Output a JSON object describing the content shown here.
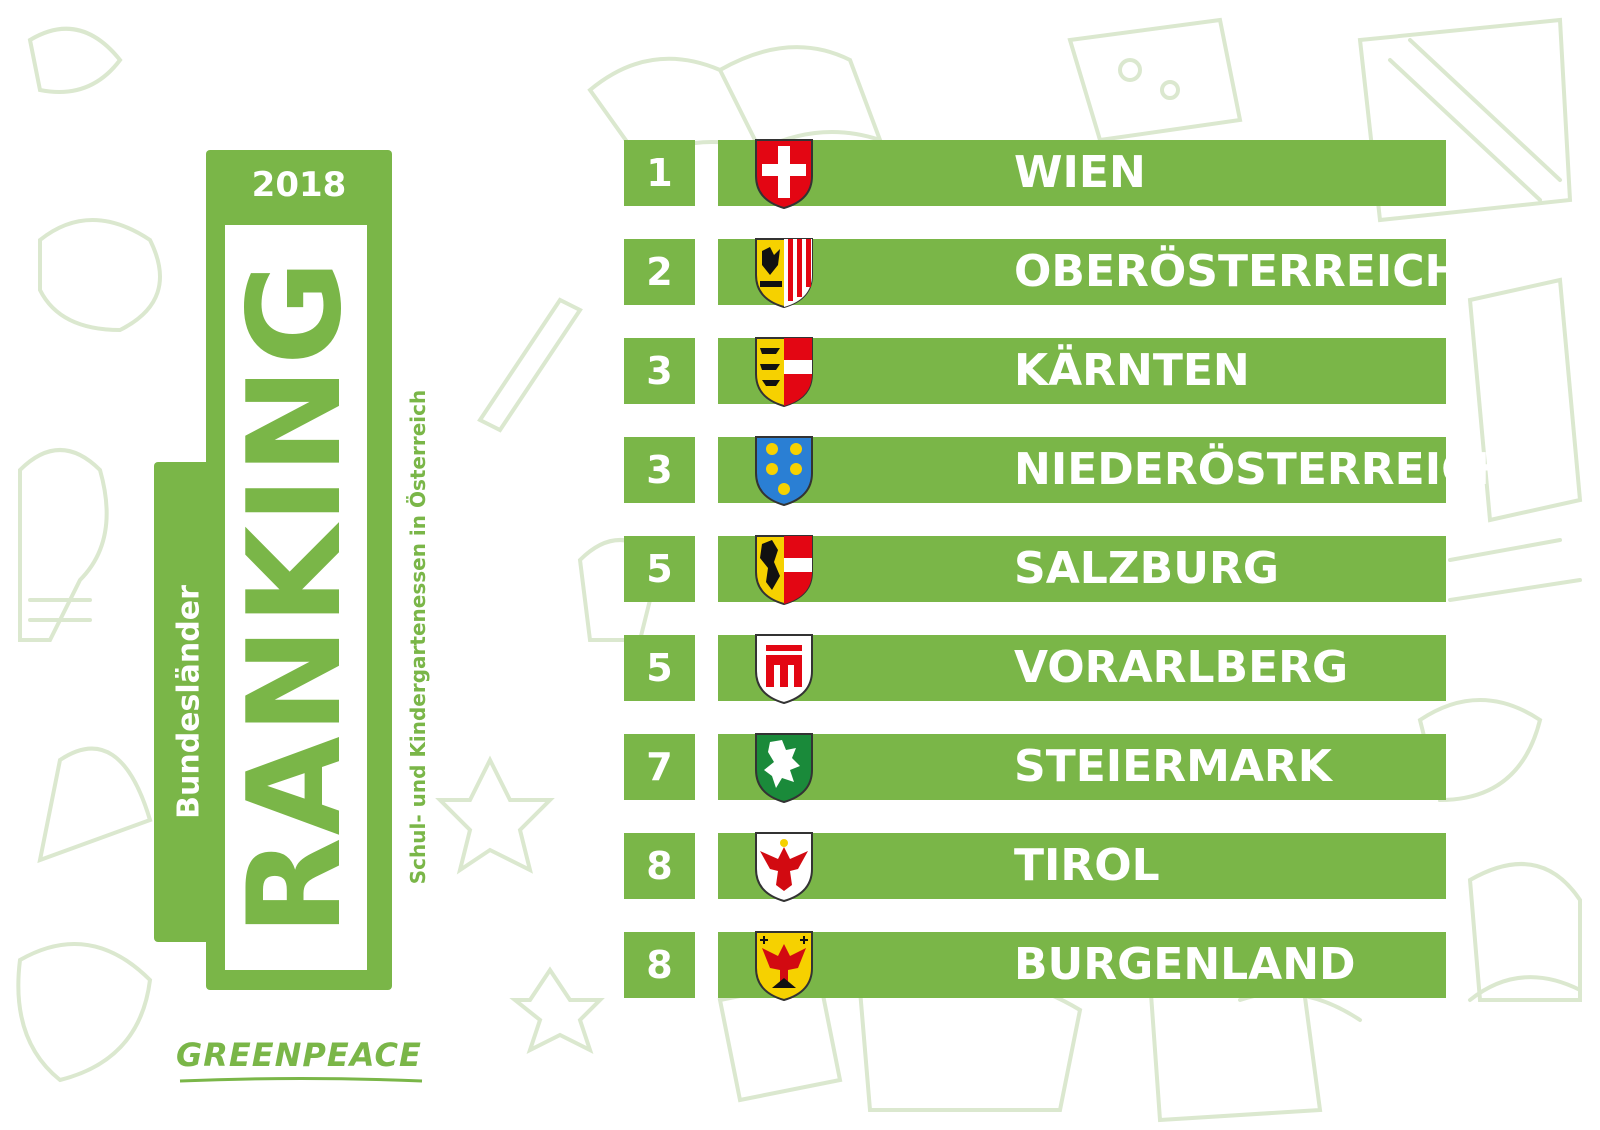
{
  "card": {
    "year": "2018",
    "side_label": "Bundesländer",
    "title": "RANKING",
    "subtitle": "Schul- und Kindergartenessen in Österreich"
  },
  "logo": {
    "text": "GREENPEACE"
  },
  "colors": {
    "accent": "#7ab648",
    "doodle": "#dbe8cf"
  },
  "ranking": [
    {
      "rank": "1",
      "name": "WIEN",
      "crest": "vienna-crest-icon"
    },
    {
      "rank": "2",
      "name": "OBERÖSTERREICH",
      "crest": "upper-austria-crest-icon"
    },
    {
      "rank": "3",
      "name": "KÄRNTEN",
      "crest": "carinthia-crest-icon"
    },
    {
      "rank": "3",
      "name": "NIEDERÖSTERREICH",
      "crest": "lower-austria-crest-icon"
    },
    {
      "rank": "5",
      "name": "SALZBURG",
      "crest": "salzburg-crest-icon"
    },
    {
      "rank": "5",
      "name": "VORARLBERG",
      "crest": "vorarlberg-crest-icon"
    },
    {
      "rank": "7",
      "name": "STEIERMARK",
      "crest": "styria-crest-icon"
    },
    {
      "rank": "8",
      "name": "TIROL",
      "crest": "tyrol-crest-icon"
    },
    {
      "rank": "8",
      "name": "BURGENLAND",
      "crest": "burgenland-crest-icon"
    }
  ]
}
